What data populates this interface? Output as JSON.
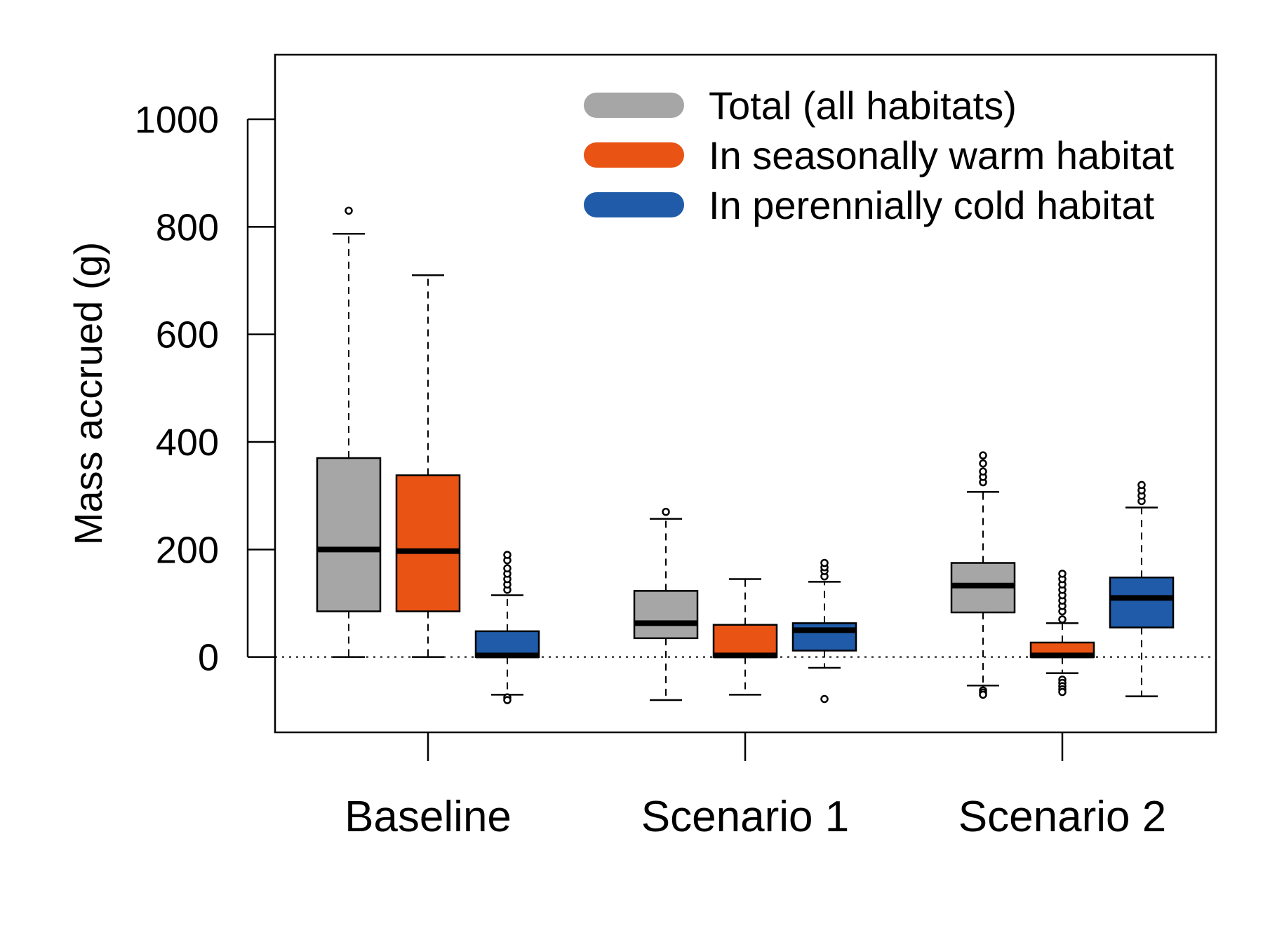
{
  "chart_data": {
    "type": "boxplot",
    "ylabel": "Mass accrued (g)",
    "xlabel": "",
    "ylim": [
      -140,
      1120
    ],
    "yticks": [
      0,
      200,
      400,
      600,
      800,
      1000
    ],
    "grid": false,
    "legend_position": "top-right",
    "reference_line": {
      "y": 0,
      "style": "dotted"
    },
    "categories": [
      "Baseline",
      "Scenario 1",
      "Scenario 2"
    ],
    "series": [
      {
        "name": "Total (all habitats)",
        "color": "#a6a6a6",
        "boxes": [
          {
            "whisker_low": 0,
            "q1": 85,
            "median": 200,
            "q3": 370,
            "whisker_high": 787,
            "outliers": [
              830
            ]
          },
          {
            "whisker_low": -80,
            "q1": 35,
            "median": 63,
            "q3": 123,
            "whisker_high": 257,
            "outliers": [
              270
            ]
          },
          {
            "whisker_low": -53,
            "q1": 83,
            "median": 133,
            "q3": 175,
            "whisker_high": 307,
            "outliers": [
              -62,
              -66,
              -70,
              325,
              335,
              345,
              360,
              375
            ]
          }
        ]
      },
      {
        "name": "In seasonally warm habitat",
        "color": "#e95314",
        "boxes": [
          {
            "whisker_low": 0,
            "q1": 85,
            "median": 197,
            "q3": 338,
            "whisker_high": 710,
            "outliers": []
          },
          {
            "whisker_low": -70,
            "q1": 0,
            "median": 3,
            "q3": 60,
            "whisker_high": 145,
            "outliers": []
          },
          {
            "whisker_low": -30,
            "q1": 0,
            "median": 3,
            "q3": 27,
            "whisker_high": 63,
            "outliers": [
              -42,
              -48,
              -54,
              -60,
              -65,
              70,
              85,
              95,
              105,
              115,
              125,
              135,
              145,
              155
            ]
          }
        ]
      },
      {
        "name": "In perennially cold habitat",
        "color": "#1f5ba8",
        "boxes": [
          {
            "whisker_low": -70,
            "q1": 0,
            "median": 3,
            "q3": 48,
            "whisker_high": 115,
            "outliers": [
              -75,
              -80,
              125,
              135,
              145,
              155,
              165,
              180,
              190
            ]
          },
          {
            "whisker_low": -20,
            "q1": 12,
            "median": 50,
            "q3": 63,
            "whisker_high": 140,
            "outliers": [
              -78,
              150,
              160,
              167,
              175
            ]
          },
          {
            "whisker_low": -73,
            "q1": 55,
            "median": 110,
            "q3": 148,
            "whisker_high": 278,
            "outliers": [
              290,
              300,
              310,
              320
            ]
          }
        ]
      }
    ]
  }
}
